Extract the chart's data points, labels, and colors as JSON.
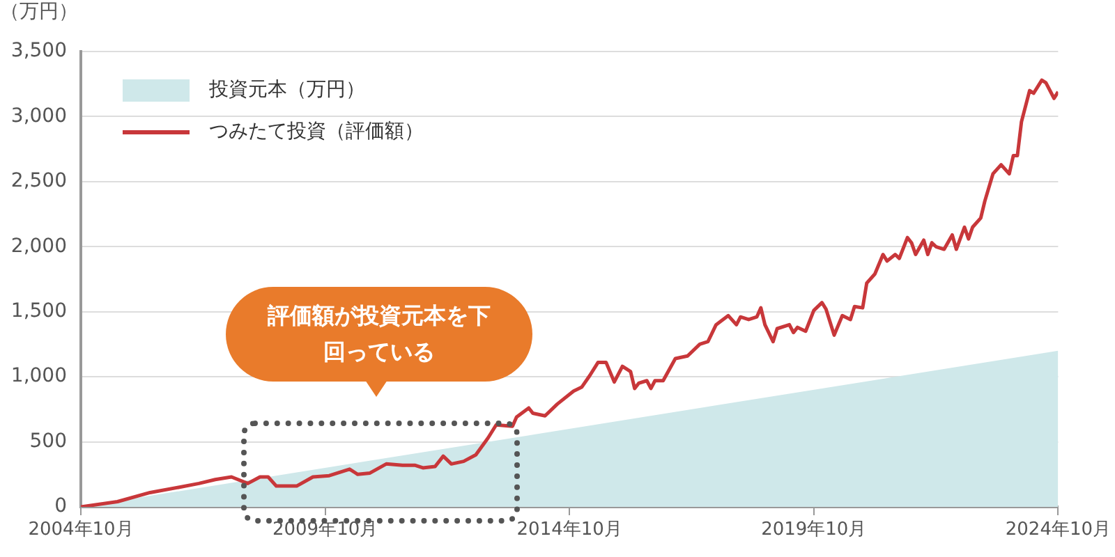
{
  "chart_data": {
    "type": "line",
    "ylabel": "（万円）",
    "legend": "top left",
    "grid": "y",
    "ylim": [
      0,
      3500
    ],
    "yticks": [
      {
        "value": 0,
        "label": "0"
      },
      {
        "value": 500,
        "label": "500"
      },
      {
        "value": 1000,
        "label": "1,000"
      },
      {
        "value": 1500,
        "label": "1,500"
      },
      {
        "value": 2000,
        "label": "2,000"
      },
      {
        "value": 2500,
        "label": "2,500"
      },
      {
        "value": 3000,
        "label": "3,000"
      },
      {
        "value": 3500,
        "label": "3,500"
      }
    ],
    "xlim": [
      "2004-10",
      "2024-10"
    ],
    "xticks": [
      {
        "value": "2004-10",
        "label": "2004年10月"
      },
      {
        "value": "2009-10",
        "label": "2009年10月"
      },
      {
        "value": "2014-10",
        "label": "2014年10月"
      },
      {
        "value": "2019-10",
        "label": "2019年10月"
      },
      {
        "value": "2024-10",
        "label": "2024年10月"
      }
    ],
    "annotations": [
      "評価額が投資元本を下回っている"
    ],
    "series": [
      {
        "name": "投資元本（万円）",
        "type": "area",
        "color": "#cfe8ea",
        "x": [
          "2004-10",
          "2024-10"
        ],
        "values": [
          0,
          1200
        ]
      },
      {
        "name": "つみたて投資（評価額）",
        "type": "line",
        "color": "#c8373a",
        "x": [
          "2004-10",
          "2005-07",
          "2006-03",
          "2006-10",
          "2007-03",
          "2007-07",
          "2007-11",
          "2008-03",
          "2008-06",
          "2008-08",
          "2008-10",
          "2009-03",
          "2009-07",
          "2009-11",
          "2010-04",
          "2010-06",
          "2010-09",
          "2011-01",
          "2011-05",
          "2011-08",
          "2011-10",
          "2012-01",
          "2012-03",
          "2012-05",
          "2012-08",
          "2012-11",
          "2013-02",
          "2013-04",
          "2013-08",
          "2013-09",
          "2013-12",
          "2014-01",
          "2014-04",
          "2014-07",
          "2014-11",
          "2015-01",
          "2015-03",
          "2015-05",
          "2015-07",
          "2015-09",
          "2015-11",
          "2016-01",
          "2016-02",
          "2016-03",
          "2016-05",
          "2016-06",
          "2016-07",
          "2016-09",
          "2016-12",
          "2017-03",
          "2017-06",
          "2017-08",
          "2017-10",
          "2018-01",
          "2018-03",
          "2018-04",
          "2018-06",
          "2018-08",
          "2018-09",
          "2018-10",
          "2018-12",
          "2019-01",
          "2019-04",
          "2019-05",
          "2019-06",
          "2019-08",
          "2019-10",
          "2019-12",
          "2020-01",
          "2020-03",
          "2020-05",
          "2020-07",
          "2020-08",
          "2020-10",
          "2020-11",
          "2021-01",
          "2021-03",
          "2021-04",
          "2021-06",
          "2021-07",
          "2021-09",
          "2021-10",
          "2021-11",
          "2022-01",
          "2022-02",
          "2022-03",
          "2022-04",
          "2022-06",
          "2022-08",
          "2022-09",
          "2022-11",
          "2022-12",
          "2023-01",
          "2023-03",
          "2023-04",
          "2023-06",
          "2023-08",
          "2023-10",
          "2023-11",
          "2023-12",
          "2024-01",
          "2024-03",
          "2024-04",
          "2024-06",
          "2024-07",
          "2024-09",
          "2024-10"
        ],
        "values": [
          0,
          40,
          110,
          150,
          180,
          210,
          230,
          180,
          230,
          230,
          160,
          160,
          230,
          240,
          290,
          250,
          260,
          330,
          320,
          320,
          300,
          310,
          390,
          330,
          350,
          400,
          530,
          630,
          620,
          690,
          760,
          720,
          700,
          790,
          890,
          920,
          1010,
          1110,
          1110,
          960,
          1080,
          1040,
          910,
          950,
          970,
          910,
          970,
          970,
          1140,
          1160,
          1250,
          1270,
          1400,
          1470,
          1400,
          1460,
          1440,
          1460,
          1530,
          1400,
          1270,
          1370,
          1400,
          1340,
          1380,
          1350,
          1510,
          1570,
          1520,
          1320,
          1470,
          1440,
          1540,
          1530,
          1720,
          1790,
          1940,
          1890,
          1940,
          1910,
          2070,
          2030,
          1940,
          2050,
          1940,
          2030,
          2000,
          1980,
          2090,
          1980,
          2150,
          2060,
          2150,
          2220,
          2350,
          2560,
          2630,
          2560,
          2700,
          2700,
          2960,
          3200,
          3180,
          3280,
          3260,
          3140,
          3190
        ]
      }
    ]
  }
}
